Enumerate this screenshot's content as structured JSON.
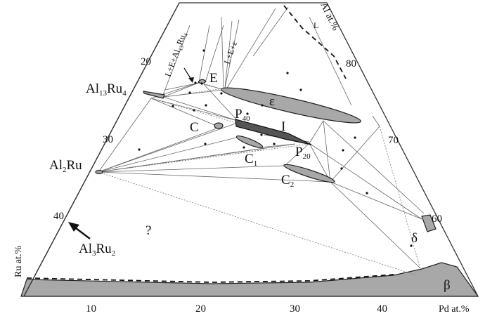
{
  "labels": {
    "al13ru4": "Al13Ru4",
    "al2ru": "Al2Ru",
    "al3ru2": "Al3Ru2",
    "unknown": "?",
    "c": "C",
    "c1": "C1",
    "c2": "C2",
    "p40": "P40",
    "p20": "P20",
    "i": "I",
    "e": "E",
    "epsilon": "ε",
    "delta": "δ",
    "beta": "β",
    "l": "L",
    "l_e_eps": "L+E+ε",
    "l_e_al13ru4": "L+E+Al13Ru4"
  },
  "axes": {
    "al_label": "Al at.%",
    "ru_label": "Ru at.%",
    "pd_label": "Pd at.%",
    "left_ticks": [
      "20",
      "30",
      "40"
    ],
    "right_ticks": [
      "80",
      "70",
      "60"
    ],
    "bottom_ticks": [
      "10",
      "20",
      "30",
      "40"
    ]
  }
}
